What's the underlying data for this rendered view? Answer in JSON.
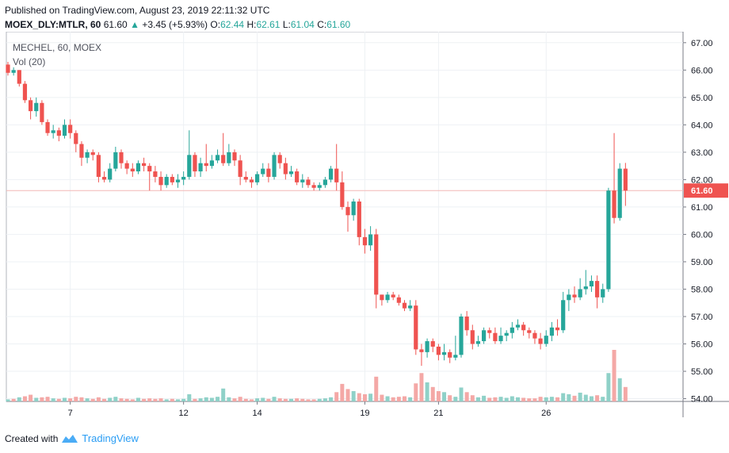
{
  "header": {
    "published": "Published on TradingView.com, August 23, 2019 22:11:32 UTC",
    "symbol": "MOEX_DLY:MTLR, 60",
    "last": "61.60",
    "change": "+3.45 (+5.93%)",
    "o_label": "O:",
    "o_value": "62.44",
    "h_label": "H:",
    "h_value": "62.61",
    "l_label": "L:",
    "l_value": "61.04",
    "c_label": "C:",
    "c_value": "61.60"
  },
  "footer": {
    "created": "Created with",
    "brand": "TradingView",
    "brand_icon": "tradingview-logo-icon"
  },
  "colors": {
    "up": "#26a69a",
    "down": "#ef5350",
    "vol_up": "#8fd1c8",
    "vol_down": "#f4a8a6",
    "grid": "#eef1f4",
    "price_line": "#f3b8b6"
  },
  "chart_data": {
    "type": "candlestick",
    "title": "MECHEL, 60, MOEX",
    "indicator": "Vol (20)",
    "ylim": [
      53.9,
      67.4
    ],
    "y_ticks": [
      "67.00",
      "66.00",
      "65.00",
      "64.00",
      "63.00",
      "62.00",
      "61.00",
      "60.00",
      "59.00",
      "58.00",
      "57.00",
      "56.00",
      "55.00",
      "54.00"
    ],
    "x_ticks": [
      {
        "label": "7",
        "index": 11
      },
      {
        "label": "12",
        "index": 31
      },
      {
        "label": "14",
        "index": 44
      },
      {
        "label": "19",
        "index": 63
      },
      {
        "label": "21",
        "index": 76
      },
      {
        "label": "26",
        "index": 95
      }
    ],
    "current_price": 61.6,
    "current_price_label": "61.60",
    "candles": [
      [
        66.2,
        65.9,
        66.3,
        65.8
      ],
      [
        65.9,
        66.0,
        66.1,
        65.8
      ],
      [
        66.0,
        65.5,
        66.0,
        65.4
      ],
      [
        65.5,
        64.9,
        65.6,
        64.8
      ],
      [
        64.9,
        64.5,
        65.0,
        64.2
      ],
      [
        64.5,
        64.8,
        65.0,
        64.3
      ],
      [
        64.8,
        64.1,
        64.9,
        64.0
      ],
      [
        64.1,
        63.7,
        64.2,
        63.6
      ],
      [
        63.7,
        63.8,
        64.0,
        63.5
      ],
      [
        63.8,
        63.6,
        63.9,
        63.4
      ],
      [
        63.6,
        64.0,
        64.2,
        63.5
      ],
      [
        64.0,
        63.7,
        64.2,
        63.5
      ],
      [
        63.7,
        63.3,
        63.8,
        63.0
      ],
      [
        63.3,
        62.8,
        63.4,
        62.5
      ],
      [
        62.8,
        63.0,
        63.1,
        62.6
      ],
      [
        63.0,
        62.9,
        63.1,
        62.7
      ],
      [
        62.9,
        62.1,
        63.0,
        61.9
      ],
      [
        62.1,
        62.0,
        62.3,
        61.9
      ],
      [
        62.0,
        62.4,
        62.6,
        61.9
      ],
      [
        62.4,
        63.0,
        63.2,
        62.3
      ],
      [
        63.0,
        62.6,
        63.1,
        62.4
      ],
      [
        62.6,
        62.4,
        62.7,
        62.2
      ],
      [
        62.4,
        62.3,
        62.6,
        62.1
      ],
      [
        62.3,
        62.6,
        62.7,
        62.2
      ],
      [
        62.6,
        62.5,
        62.8,
        62.3
      ],
      [
        62.5,
        62.3,
        62.6,
        61.6
      ],
      [
        62.3,
        62.1,
        62.5,
        61.9
      ],
      [
        62.1,
        61.8,
        62.3,
        61.6
      ],
      [
        61.8,
        62.1,
        62.2,
        61.7
      ],
      [
        62.1,
        61.9,
        62.2,
        61.8
      ],
      [
        61.9,
        62.0,
        62.2,
        61.7
      ],
      [
        62.0,
        62.1,
        62.3,
        61.8
      ],
      [
        62.1,
        62.9,
        63.8,
        62.0
      ],
      [
        62.9,
        62.3,
        63.0,
        62.1
      ],
      [
        62.3,
        62.6,
        62.8,
        62.1
      ],
      [
        62.6,
        62.5,
        63.3,
        62.3
      ],
      [
        62.5,
        62.7,
        62.9,
        62.4
      ],
      [
        62.7,
        62.9,
        63.1,
        62.6
      ],
      [
        62.9,
        62.6,
        63.7,
        62.5
      ],
      [
        62.6,
        63.0,
        63.3,
        62.5
      ],
      [
        63.0,
        62.7,
        63.1,
        62.5
      ],
      [
        62.7,
        62.1,
        62.9,
        61.8
      ],
      [
        62.1,
        62.0,
        62.3,
        61.9
      ],
      [
        62.0,
        61.9,
        62.1,
        61.7
      ],
      [
        61.9,
        62.2,
        62.3,
        61.8
      ],
      [
        62.2,
        62.4,
        62.6,
        62.1
      ],
      [
        62.4,
        62.1,
        62.6,
        61.9
      ],
      [
        62.1,
        62.9,
        63.0,
        62.0
      ],
      [
        62.9,
        62.6,
        63.0,
        62.4
      ],
      [
        62.6,
        62.2,
        62.8,
        62.0
      ],
      [
        62.2,
        62.3,
        62.5,
        62.1
      ],
      [
        62.3,
        61.9,
        62.4,
        61.8
      ],
      [
        61.9,
        62.0,
        62.2,
        61.7
      ],
      [
        62.0,
        61.8,
        62.1,
        61.7
      ],
      [
        61.8,
        61.7,
        61.9,
        61.6
      ],
      [
        61.7,
        61.8,
        61.9,
        61.6
      ],
      [
        61.8,
        62.0,
        62.1,
        61.7
      ],
      [
        62.0,
        62.4,
        62.5,
        61.9
      ],
      [
        62.4,
        61.9,
        63.3,
        61.6
      ],
      [
        61.9,
        61.0,
        62.3,
        60.9
      ],
      [
        61.0,
        60.7,
        61.2,
        60.1
      ],
      [
        60.7,
        61.2,
        61.3,
        60.5
      ],
      [
        61.2,
        59.9,
        61.3,
        59.6
      ],
      [
        59.9,
        59.6,
        60.2,
        59.3
      ],
      [
        59.6,
        60.0,
        60.3,
        59.4
      ],
      [
        60.0,
        57.8,
        60.2,
        57.3
      ],
      [
        57.8,
        57.6,
        57.8,
        57.4
      ],
      [
        57.6,
        57.8,
        57.9,
        57.5
      ],
      [
        57.8,
        57.7,
        57.9,
        57.6
      ],
      [
        57.7,
        57.5,
        57.8,
        57.4
      ],
      [
        57.5,
        57.3,
        57.6,
        57.2
      ],
      [
        57.3,
        57.4,
        57.6,
        57.2
      ],
      [
        57.4,
        55.8,
        57.6,
        55.6
      ],
      [
        55.8,
        55.7,
        56.0,
        55.2
      ],
      [
        55.7,
        56.1,
        56.2,
        55.5
      ],
      [
        56.1,
        55.9,
        56.2,
        55.7
      ],
      [
        55.9,
        55.6,
        56.0,
        55.4
      ],
      [
        55.6,
        55.7,
        56.0,
        55.4
      ],
      [
        55.7,
        55.5,
        55.8,
        55.3
      ],
      [
        55.5,
        55.6,
        56.3,
        55.4
      ],
      [
        55.6,
        57.0,
        57.1,
        55.5
      ],
      [
        57.0,
        56.5,
        57.2,
        56.3
      ],
      [
        56.5,
        56.0,
        56.7,
        55.8
      ],
      [
        56.0,
        56.1,
        56.3,
        55.9
      ],
      [
        56.1,
        56.5,
        56.6,
        56.0
      ],
      [
        56.5,
        56.4,
        56.6,
        56.2
      ],
      [
        56.4,
        56.1,
        56.6,
        56.0
      ],
      [
        56.1,
        56.3,
        56.6,
        56.0
      ],
      [
        56.3,
        56.4,
        56.5,
        56.1
      ],
      [
        56.4,
        56.6,
        56.8,
        56.2
      ],
      [
        56.6,
        56.7,
        56.9,
        56.5
      ],
      [
        56.7,
        56.5,
        56.8,
        56.3
      ],
      [
        56.5,
        56.4,
        56.6,
        56.2
      ],
      [
        56.4,
        56.2,
        56.5,
        56.0
      ],
      [
        56.2,
        56.0,
        56.4,
        55.8
      ],
      [
        56.0,
        56.3,
        56.5,
        55.9
      ],
      [
        56.3,
        56.6,
        56.8,
        56.1
      ],
      [
        56.6,
        56.5,
        56.9,
        56.3
      ],
      [
        56.5,
        57.6,
        57.9,
        56.4
      ],
      [
        57.6,
        57.8,
        58.0,
        57.2
      ],
      [
        57.8,
        57.7,
        58.1,
        57.5
      ],
      [
        57.7,
        58.0,
        58.4,
        57.6
      ],
      [
        58.0,
        58.1,
        58.7,
        57.8
      ],
      [
        58.1,
        58.3,
        58.5,
        57.9
      ],
      [
        58.3,
        57.7,
        58.5,
        57.3
      ],
      [
        57.7,
        58.0,
        58.2,
        57.5
      ],
      [
        58.0,
        61.6,
        61.7,
        57.9
      ],
      [
        61.6,
        60.6,
        63.7,
        60.4
      ],
      [
        60.6,
        62.4,
        62.6,
        60.5
      ],
      [
        62.4,
        61.6,
        62.61,
        61.04
      ]
    ],
    "volumes": [
      [
        4,
        1
      ],
      [
        5,
        0
      ],
      [
        8,
        1
      ],
      [
        10,
        0
      ],
      [
        13,
        0
      ],
      [
        7,
        1
      ],
      [
        8,
        0
      ],
      [
        9,
        0
      ],
      [
        6,
        1
      ],
      [
        5,
        0
      ],
      [
        7,
        1
      ],
      [
        6,
        0
      ],
      [
        9,
        0
      ],
      [
        8,
        0
      ],
      [
        6,
        1
      ],
      [
        5,
        0
      ],
      [
        8,
        0
      ],
      [
        5,
        0
      ],
      [
        7,
        1
      ],
      [
        9,
        1
      ],
      [
        6,
        0
      ],
      [
        5,
        0
      ],
      [
        4,
        0
      ],
      [
        7,
        1
      ],
      [
        5,
        0
      ],
      [
        6,
        0
      ],
      [
        5,
        0
      ],
      [
        6,
        0
      ],
      [
        4,
        1
      ],
      [
        5,
        0
      ],
      [
        4,
        1
      ],
      [
        5,
        1
      ],
      [
        14,
        1
      ],
      [
        5,
        0
      ],
      [
        6,
        1
      ],
      [
        8,
        1
      ],
      [
        7,
        1
      ],
      [
        9,
        1
      ],
      [
        25,
        1
      ],
      [
        8,
        1
      ],
      [
        6,
        0
      ],
      [
        9,
        0
      ],
      [
        5,
        0
      ],
      [
        4,
        0
      ],
      [
        6,
        1
      ],
      [
        7,
        1
      ],
      [
        5,
        0
      ],
      [
        9,
        1
      ],
      [
        6,
        0
      ],
      [
        5,
        0
      ],
      [
        5,
        1
      ],
      [
        6,
        0
      ],
      [
        5,
        0
      ],
      [
        4,
        0
      ],
      [
        4,
        0
      ],
      [
        5,
        1
      ],
      [
        6,
        1
      ],
      [
        8,
        1
      ],
      [
        18,
        0
      ],
      [
        34,
        0
      ],
      [
        24,
        0
      ],
      [
        20,
        1
      ],
      [
        16,
        0
      ],
      [
        14,
        0
      ],
      [
        15,
        1
      ],
      [
        48,
        0
      ],
      [
        13,
        0
      ],
      [
        10,
        1
      ],
      [
        8,
        0
      ],
      [
        9,
        0
      ],
      [
        10,
        0
      ],
      [
        8,
        1
      ],
      [
        35,
        0
      ],
      [
        55,
        0
      ],
      [
        37,
        1
      ],
      [
        28,
        0
      ],
      [
        20,
        0
      ],
      [
        18,
        1
      ],
      [
        12,
        0
      ],
      [
        9,
        1
      ],
      [
        27,
        1
      ],
      [
        18,
        0
      ],
      [
        12,
        0
      ],
      [
        8,
        1
      ],
      [
        11,
        1
      ],
      [
        7,
        0
      ],
      [
        8,
        0
      ],
      [
        9,
        1
      ],
      [
        7,
        1
      ],
      [
        10,
        1
      ],
      [
        8,
        1
      ],
      [
        7,
        0
      ],
      [
        6,
        0
      ],
      [
        6,
        0
      ],
      [
        9,
        0
      ],
      [
        8,
        1
      ],
      [
        9,
        1
      ],
      [
        8,
        0
      ],
      [
        16,
        1
      ],
      [
        14,
        1
      ],
      [
        11,
        0
      ],
      [
        17,
        1
      ],
      [
        13,
        1
      ],
      [
        10,
        1
      ],
      [
        12,
        0
      ],
      [
        9,
        1
      ],
      [
        55,
        1
      ],
      [
        100,
        0
      ],
      [
        45,
        1
      ],
      [
        28,
        0
      ]
    ]
  }
}
